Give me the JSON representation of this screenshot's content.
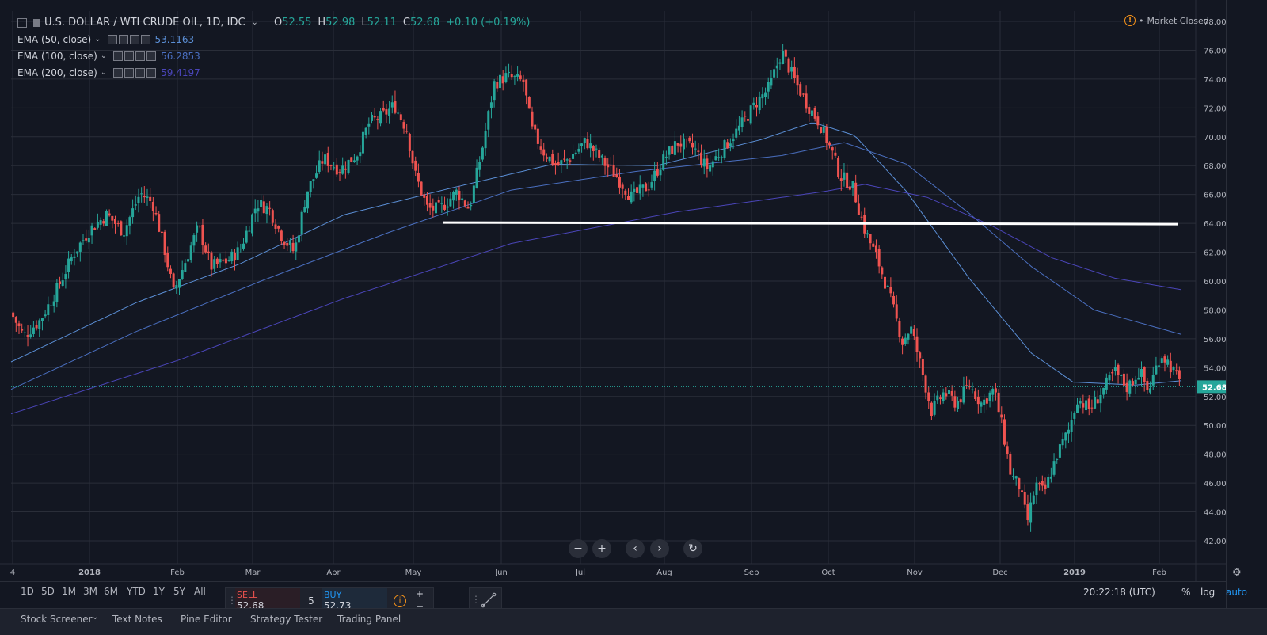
{
  "header": {
    "symbol": "U.S. DOLLAR / WTI CRUDE OIL, 1D, IDC",
    "ohlc": {
      "o_label": "O",
      "o": "52.55",
      "h_label": "H",
      "h": "52.98",
      "l_label": "L",
      "l": "52.11",
      "c_label": "C",
      "c": "52.68",
      "change": "+0.10 (+0.19%)"
    },
    "market_status": "Market Closed"
  },
  "indicators": [
    {
      "label": "EMA (50, close)",
      "value": "53.1163",
      "color": "#5b8fd6"
    },
    {
      "label": "EMA (100, close)",
      "value": "56.2853",
      "color": "#4a6fc0"
    },
    {
      "label": "EMA (200, close)",
      "value": "59.4197",
      "color": "#4a45b8"
    }
  ],
  "chart_data": {
    "type": "candlestick",
    "y_ticks": [
      "42.00",
      "44.00",
      "46.00",
      "48.00",
      "50.00",
      "52.00",
      "54.00",
      "56.00",
      "58.00",
      "60.00",
      "62.00",
      "64.00",
      "66.00",
      "68.00",
      "70.00",
      "72.00",
      "74.00",
      "76.00",
      "78.00"
    ],
    "ylim": [
      41.0,
      78.5
    ],
    "x_ticks": [
      "4",
      "2018",
      "Feb",
      "Mar",
      "Apr",
      "May",
      "Jun",
      "Jul",
      "Aug",
      "Sep",
      "Oct",
      "Nov",
      "Dec",
      "2019",
      "Feb"
    ],
    "last_price": "52.68",
    "horizontal_line": 64.0,
    "price_path": [
      {
        "d": 0,
        "p": 57.8
      },
      {
        "d": 6,
        "p": 56.2
      },
      {
        "d": 14,
        "p": 57.3
      },
      {
        "d": 22,
        "p": 59.4
      },
      {
        "d": 30,
        "p": 61.9
      },
      {
        "d": 38,
        "p": 63.6
      },
      {
        "d": 46,
        "p": 64.6
      },
      {
        "d": 54,
        "p": 63.4
      },
      {
        "d": 62,
        "p": 66.1
      },
      {
        "d": 68,
        "p": 65.4
      },
      {
        "d": 74,
        "p": 62.0
      },
      {
        "d": 78,
        "p": 59.2
      },
      {
        "d": 84,
        "p": 61.5
      },
      {
        "d": 90,
        "p": 63.8
      },
      {
        "d": 96,
        "p": 61.0
      },
      {
        "d": 104,
        "p": 61.4
      },
      {
        "d": 110,
        "p": 62.2
      },
      {
        "d": 118,
        "p": 65.4
      },
      {
        "d": 124,
        "p": 65.0
      },
      {
        "d": 130,
        "p": 63.1
      },
      {
        "d": 136,
        "p": 62.0
      },
      {
        "d": 142,
        "p": 66.2
      },
      {
        "d": 150,
        "p": 68.5
      },
      {
        "d": 158,
        "p": 67.7
      },
      {
        "d": 166,
        "p": 68.8
      },
      {
        "d": 172,
        "p": 71.0
      },
      {
        "d": 178,
        "p": 71.4
      },
      {
        "d": 184,
        "p": 72.2
      },
      {
        "d": 190,
        "p": 70.5
      },
      {
        "d": 194,
        "p": 67.4
      },
      {
        "d": 200,
        "p": 65.0
      },
      {
        "d": 206,
        "p": 65.0
      },
      {
        "d": 214,
        "p": 66.2
      },
      {
        "d": 220,
        "p": 65.0
      },
      {
        "d": 226,
        "p": 69.0
      },
      {
        "d": 232,
        "p": 73.7
      },
      {
        "d": 238,
        "p": 74.2
      },
      {
        "d": 246,
        "p": 73.8
      },
      {
        "d": 250,
        "p": 70.5
      },
      {
        "d": 256,
        "p": 68.9
      },
      {
        "d": 262,
        "p": 68.0
      },
      {
        "d": 268,
        "p": 68.5
      },
      {
        "d": 276,
        "p": 69.7
      },
      {
        "d": 284,
        "p": 68.3
      },
      {
        "d": 290,
        "p": 67.4
      },
      {
        "d": 298,
        "p": 65.8
      },
      {
        "d": 306,
        "p": 66.6
      },
      {
        "d": 314,
        "p": 68.6
      },
      {
        "d": 320,
        "p": 69.6
      },
      {
        "d": 328,
        "p": 69.2
      },
      {
        "d": 334,
        "p": 67.8
      },
      {
        "d": 342,
        "p": 69.2
      },
      {
        "d": 350,
        "p": 70.7
      },
      {
        "d": 358,
        "p": 72.4
      },
      {
        "d": 364,
        "p": 73.4
      },
      {
        "d": 370,
        "p": 75.9
      },
      {
        "d": 376,
        "p": 74.0
      },
      {
        "d": 382,
        "p": 72.3
      },
      {
        "d": 388,
        "p": 71.0
      },
      {
        "d": 394,
        "p": 69.0
      },
      {
        "d": 398,
        "p": 67.3
      },
      {
        "d": 404,
        "p": 66.6
      },
      {
        "d": 410,
        "p": 63.5
      },
      {
        "d": 416,
        "p": 61.5
      },
      {
        "d": 422,
        "p": 58.9
      },
      {
        "d": 428,
        "p": 55.8
      },
      {
        "d": 432,
        "p": 56.8
      },
      {
        "d": 436,
        "p": 54.6
      },
      {
        "d": 442,
        "p": 51.0
      },
      {
        "d": 448,
        "p": 52.3
      },
      {
        "d": 454,
        "p": 51.5
      },
      {
        "d": 460,
        "p": 52.8
      },
      {
        "d": 466,
        "p": 51.5
      },
      {
        "d": 472,
        "p": 52.5
      },
      {
        "d": 476,
        "p": 49.8
      },
      {
        "d": 480,
        "p": 46.6
      },
      {
        "d": 484,
        "p": 45.8
      },
      {
        "d": 488,
        "p": 43.3
      },
      {
        "d": 492,
        "p": 45.9
      },
      {
        "d": 496,
        "p": 45.3
      },
      {
        "d": 502,
        "p": 47.9
      },
      {
        "d": 508,
        "p": 49.7
      },
      {
        "d": 512,
        "p": 51.9
      },
      {
        "d": 518,
        "p": 51.1
      },
      {
        "d": 524,
        "p": 52.4
      },
      {
        "d": 530,
        "p": 53.7
      },
      {
        "d": 536,
        "p": 52.6
      },
      {
        "d": 542,
        "p": 53.8
      },
      {
        "d": 546,
        "p": 52.3
      },
      {
        "d": 552,
        "p": 55.0
      },
      {
        "d": 556,
        "p": 54.3
      },
      {
        "d": 562,
        "p": 52.68
      }
    ],
    "ema50_path": [
      {
        "d": 0,
        "p": 54.4
      },
      {
        "d": 60,
        "p": 58.5
      },
      {
        "d": 110,
        "p": 61.2
      },
      {
        "d": 160,
        "p": 64.6
      },
      {
        "d": 210,
        "p": 66.4
      },
      {
        "d": 260,
        "p": 68.1
      },
      {
        "d": 310,
        "p": 68.0
      },
      {
        "d": 360,
        "p": 69.8
      },
      {
        "d": 385,
        "p": 71.0
      },
      {
        "d": 405,
        "p": 70.1
      },
      {
        "d": 430,
        "p": 66.2
      },
      {
        "d": 460,
        "p": 60.2
      },
      {
        "d": 490,
        "p": 55.0
      },
      {
        "d": 510,
        "p": 53.0
      },
      {
        "d": 540,
        "p": 52.8
      },
      {
        "d": 562,
        "p": 53.1
      }
    ],
    "ema100_path": [
      {
        "d": 0,
        "p": 52.5
      },
      {
        "d": 60,
        "p": 56.5
      },
      {
        "d": 120,
        "p": 60.0
      },
      {
        "d": 180,
        "p": 63.3
      },
      {
        "d": 240,
        "p": 66.3
      },
      {
        "d": 300,
        "p": 67.6
      },
      {
        "d": 370,
        "p": 68.7
      },
      {
        "d": 400,
        "p": 69.6
      },
      {
        "d": 430,
        "p": 68.1
      },
      {
        "d": 460,
        "p": 64.7
      },
      {
        "d": 490,
        "p": 61.0
      },
      {
        "d": 520,
        "p": 58.0
      },
      {
        "d": 562,
        "p": 56.3
      }
    ],
    "ema200_path": [
      {
        "d": 0,
        "p": 50.8
      },
      {
        "d": 80,
        "p": 54.5
      },
      {
        "d": 160,
        "p": 58.8
      },
      {
        "d": 240,
        "p": 62.6
      },
      {
        "d": 320,
        "p": 64.8
      },
      {
        "d": 390,
        "p": 66.2
      },
      {
        "d": 410,
        "p": 66.7
      },
      {
        "d": 440,
        "p": 65.8
      },
      {
        "d": 470,
        "p": 63.9
      },
      {
        "d": 500,
        "p": 61.6
      },
      {
        "d": 530,
        "p": 60.2
      },
      {
        "d": 562,
        "p": 59.4
      }
    ]
  },
  "nav_controls": [
    "−",
    "+",
    "‹",
    "›",
    "↻"
  ],
  "bottom": {
    "timeframes": [
      "1D",
      "5D",
      "1M",
      "3M",
      "6M",
      "YTD",
      "1Y",
      "5Y",
      "All"
    ],
    "sell_label": "SELL",
    "sell_price": "52.68",
    "quantity": "5",
    "buy_label": "BUY",
    "buy_price": "52.73",
    "clock": "20:22:18 (UTC)",
    "percent": "%",
    "log": "log",
    "auto": "auto"
  },
  "tabs": [
    "Stock Screener",
    "Text Notes",
    "Pine Editor",
    "Strategy Tester",
    "Trading Panel"
  ],
  "colors": {
    "up": "#26a69a",
    "down": "#ef5350",
    "bg": "#131722",
    "grid": "#2a2e39",
    "text": "#b2b5be",
    "accent": "#2962ff"
  }
}
